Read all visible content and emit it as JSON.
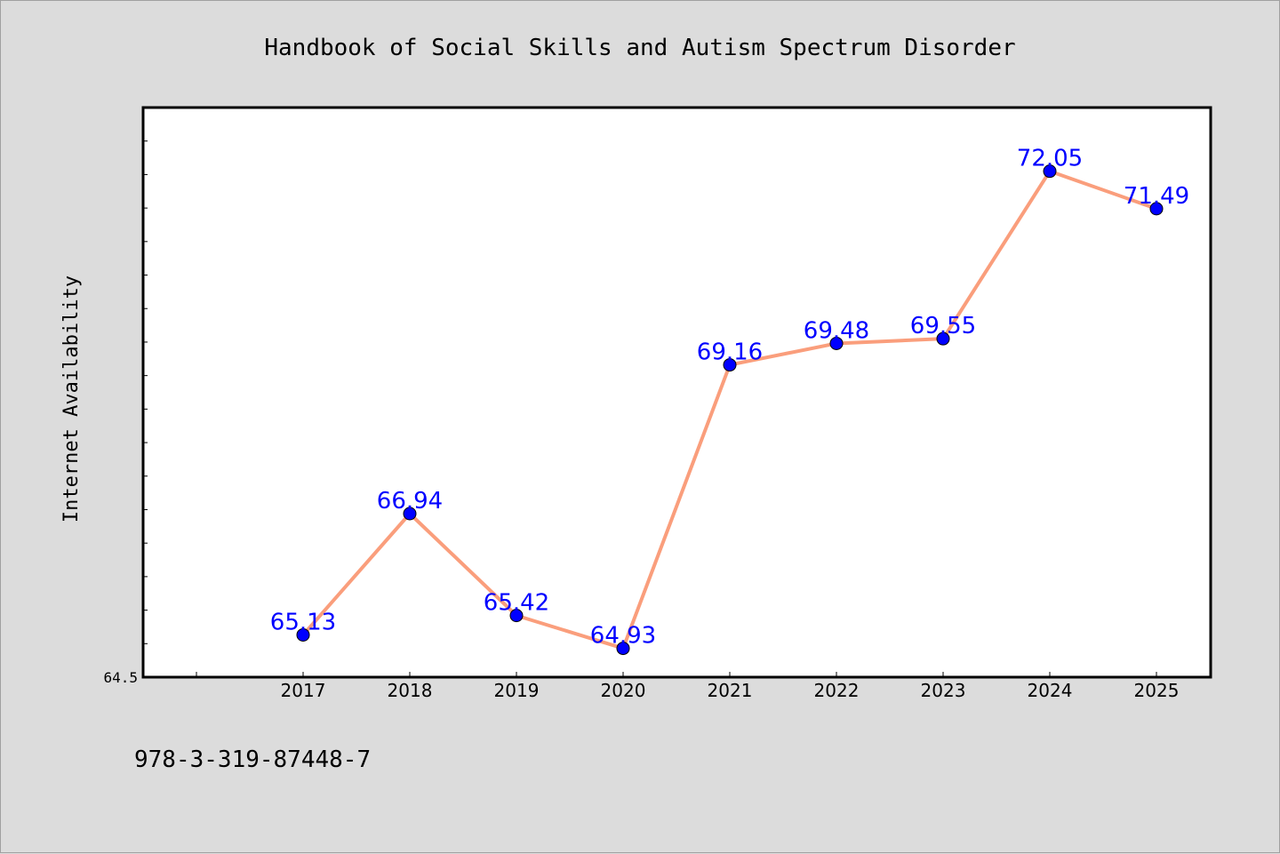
{
  "chart_data": {
    "type": "line",
    "title": "Handbook of Social Skills and Autism Spectrum Disorder",
    "xlabel": "",
    "ylabel": "Internet Availability",
    "footer_text": "978-3-319-87448-7",
    "x": [
      "2017",
      "2018",
      "2019",
      "2020",
      "2021",
      "2022",
      "2023",
      "2024",
      "2025"
    ],
    "series": [
      {
        "values": [
          65.13,
          66.94,
          65.42,
          64.93,
          69.16,
          69.48,
          69.55,
          72.05,
          71.49
        ]
      }
    ],
    "y_tick_labels": [
      "64.5"
    ],
    "ylim": [
      64.5,
      73.0
    ],
    "grid": false,
    "legend": "none",
    "colors": {
      "line": "#fa9e7c",
      "marker": "#0000ff",
      "data_label": "#0000ff",
      "axis": "#000000",
      "plot_background": "#ffffff",
      "page_background": "#dcdcdc"
    }
  }
}
